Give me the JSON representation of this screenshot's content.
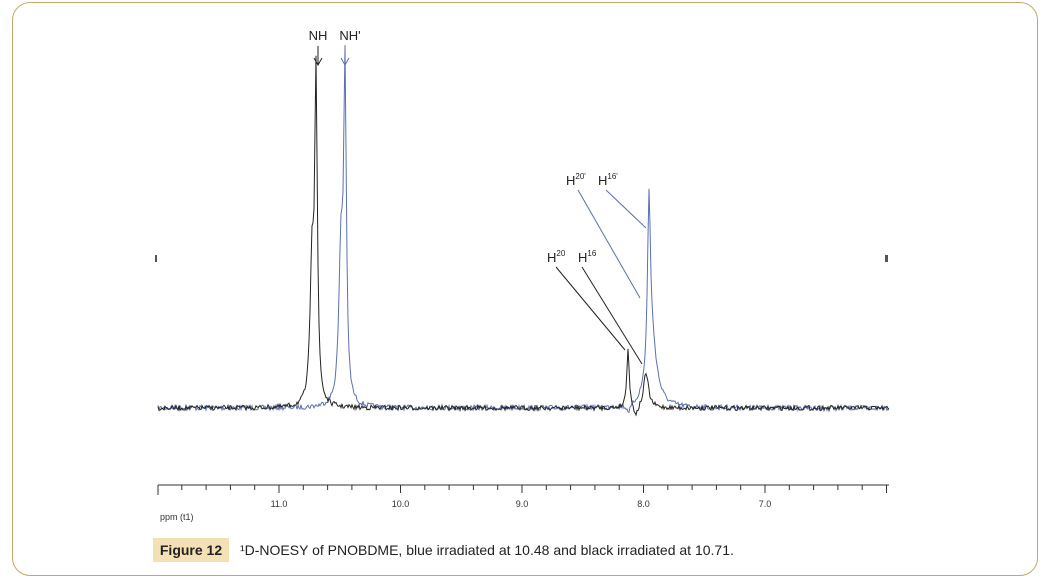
{
  "figure": {
    "peak_labels": {
      "nh": "NH",
      "nh_prime": "NH'",
      "h20": {
        "base": "H",
        "sup": "20"
      },
      "h16": {
        "base": "H",
        "sup": "16"
      },
      "h20_prime": {
        "base": "H",
        "sup": "20'"
      },
      "h16_prime": {
        "base": "H",
        "sup": "16'"
      }
    },
    "axis": {
      "ticks": [
        "11.0",
        "10.0",
        "9.0",
        "8.0",
        "7.0"
      ],
      "unit": "ppm (t1)"
    },
    "label": "Figure 12",
    "caption": "¹D-NOESY of PNOBDME, blue irradiated at 10.48 and black irradiated at 10.71."
  }
}
